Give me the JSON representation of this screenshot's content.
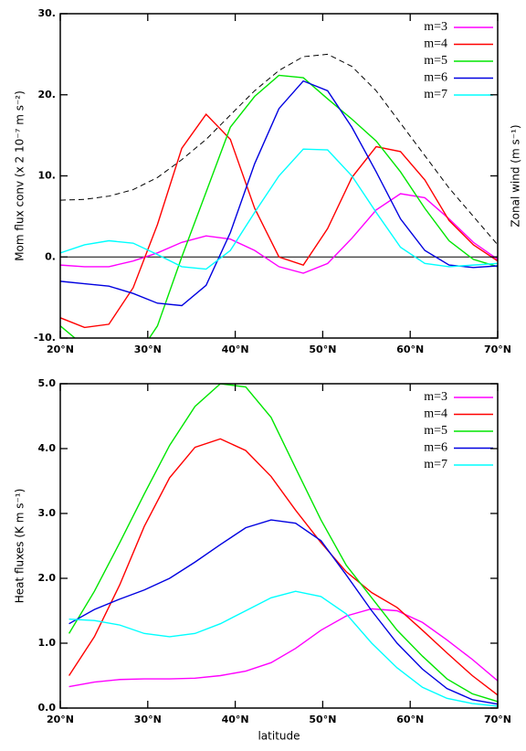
{
  "chart_data": [
    {
      "type": "line",
      "ylabel": "Mom flux conv (x 2 10⁻⁷ m s⁻²)",
      "y2label": "Zonal wind (m s⁻¹)",
      "x": [
        20,
        22.78,
        25.56,
        28.33,
        31.11,
        33.89,
        36.67,
        39.44,
        42.22,
        45,
        47.78,
        50.56,
        53.33,
        56.11,
        58.89,
        61.67,
        64.44,
        67.22,
        70
      ],
      "xlim": [
        20,
        70
      ],
      "xticks": [
        {
          "value": 20,
          "label": "20°N"
        },
        {
          "value": 30,
          "label": "30°N"
        },
        {
          "value": 40,
          "label": "40°N"
        },
        {
          "value": 50,
          "label": "50°N"
        },
        {
          "value": 60,
          "label": "60°N"
        },
        {
          "value": 70,
          "label": "70°N"
        }
      ],
      "ylim": [
        -10,
        30
      ],
      "yticks": [
        {
          "value": -10,
          "label": "-10."
        },
        {
          "value": 0,
          "label": "0."
        },
        {
          "value": 10,
          "label": "10."
        },
        {
          "value": 20,
          "label": "20."
        },
        {
          "value": 30,
          "label": "30."
        }
      ],
      "zero_line": true,
      "legend": "top-right",
      "series": [
        {
          "name": "m=3",
          "color": "#ff00ff",
          "values": [
            -1,
            -1.2,
            -1.2,
            -0.5,
            0.5,
            1.8,
            2.6,
            2.2,
            0.8,
            -1.2,
            -2,
            -0.8,
            2.3,
            5.8,
            7.8,
            7.3,
            4.7,
            1.8,
            -0.3
          ]
        },
        {
          "name": "m=4",
          "color": "#ff0000",
          "values": [
            -7.5,
            -8.7,
            -8.3,
            -3.8,
            4,
            13.4,
            17.6,
            14.5,
            6,
            0,
            -1,
            3.5,
            9.8,
            13.6,
            13,
            9.5,
            4.5,
            1.5,
            -0.5
          ]
        },
        {
          "name": "m=5",
          "color": "#00e600",
          "values": [
            -8.5,
            -11,
            -13,
            -13,
            -8.5,
            0,
            8,
            16,
            19.8,
            22.4,
            22.1,
            19.5,
            17,
            14.3,
            10.5,
            6,
            2,
            -0.3,
            -1.2
          ]
        },
        {
          "name": "m=6",
          "color": "#0000e0",
          "values": [
            -3,
            -3.3,
            -3.6,
            -4.5,
            -5.7,
            -6,
            -3.5,
            3,
            11.5,
            18.3,
            21.7,
            20.5,
            16,
            10.5,
            4.7,
            0.8,
            -1,
            -1.3,
            -1.1
          ]
        },
        {
          "name": "m=7",
          "color": "#00ffff",
          "values": [
            0.5,
            1.5,
            2,
            1.7,
            0.3,
            -1.2,
            -1.5,
            0.8,
            5.5,
            10,
            13.3,
            13.2,
            10,
            5.5,
            1.2,
            -0.8,
            -1.2,
            -1,
            -0.8
          ]
        },
        {
          "color": "#000000",
          "dashed": true,
          "values": [
            7,
            7.1,
            7.5,
            8.3,
            9.8,
            12,
            14.5,
            17.5,
            20.5,
            23,
            24.7,
            25,
            23.5,
            20.5,
            16.5,
            12.5,
            8.5,
            5,
            1.5
          ]
        }
      ]
    },
    {
      "type": "line",
      "ylabel": "Heat fluxes (K m s⁻¹)",
      "xlabel": "latitude",
      "x": [
        21,
        23.9,
        26.8,
        29.6,
        32.5,
        35.4,
        38.3,
        41.2,
        44.1,
        46.9,
        49.8,
        52.7,
        55.6,
        58.5,
        61.4,
        64.2,
        67.1,
        70
      ],
      "xlim": [
        20,
        70
      ],
      "xticks": [
        {
          "value": 20,
          "label": "20°N"
        },
        {
          "value": 30,
          "label": "30°N"
        },
        {
          "value": 40,
          "label": "40°N"
        },
        {
          "value": 50,
          "label": "50°N"
        },
        {
          "value": 60,
          "label": "60°N"
        },
        {
          "value": 70,
          "label": "70°N"
        }
      ],
      "ylim": [
        0,
        5
      ],
      "yticks": [
        {
          "value": 0,
          "label": "0.0"
        },
        {
          "value": 1,
          "label": "1.0"
        },
        {
          "value": 2,
          "label": "2.0"
        },
        {
          "value": 3,
          "label": "3.0"
        },
        {
          "value": 4,
          "label": "4.0"
        },
        {
          "value": 5,
          "label": "5.0"
        }
      ],
      "zero_line": false,
      "legend": "top-right",
      "series": [
        {
          "name": "m=3",
          "color": "#ff00ff",
          "values": [
            0.33,
            0.4,
            0.44,
            0.45,
            0.45,
            0.46,
            0.5,
            0.57,
            0.7,
            0.92,
            1.2,
            1.42,
            1.53,
            1.5,
            1.32,
            1.05,
            0.75,
            0.42
          ]
        },
        {
          "name": "m=4",
          "color": "#ff0000",
          "values": [
            0.5,
            1.1,
            1.9,
            2.8,
            3.55,
            4.02,
            4.15,
            3.97,
            3.57,
            3.05,
            2.55,
            2.1,
            1.78,
            1.55,
            1.2,
            0.85,
            0.5,
            0.2
          ]
        },
        {
          "name": "m=5",
          "color": "#00e600",
          "values": [
            1.15,
            1.8,
            2.55,
            3.3,
            4.05,
            4.65,
            5.0,
            4.95,
            4.48,
            3.7,
            2.9,
            2.2,
            1.7,
            1.2,
            0.8,
            0.45,
            0.22,
            0.1
          ]
        },
        {
          "name": "m=6",
          "color": "#0000e0",
          "values": [
            1.3,
            1.52,
            1.68,
            1.82,
            2.0,
            2.25,
            2.52,
            2.78,
            2.9,
            2.85,
            2.58,
            2.05,
            1.5,
            1.0,
            0.6,
            0.3,
            0.13,
            0.06
          ]
        },
        {
          "name": "m=7",
          "color": "#00ffff",
          "values": [
            1.37,
            1.35,
            1.28,
            1.15,
            1.1,
            1.15,
            1.3,
            1.5,
            1.7,
            1.8,
            1.72,
            1.45,
            1.0,
            0.62,
            0.32,
            0.15,
            0.07,
            0.03
          ]
        }
      ]
    }
  ]
}
